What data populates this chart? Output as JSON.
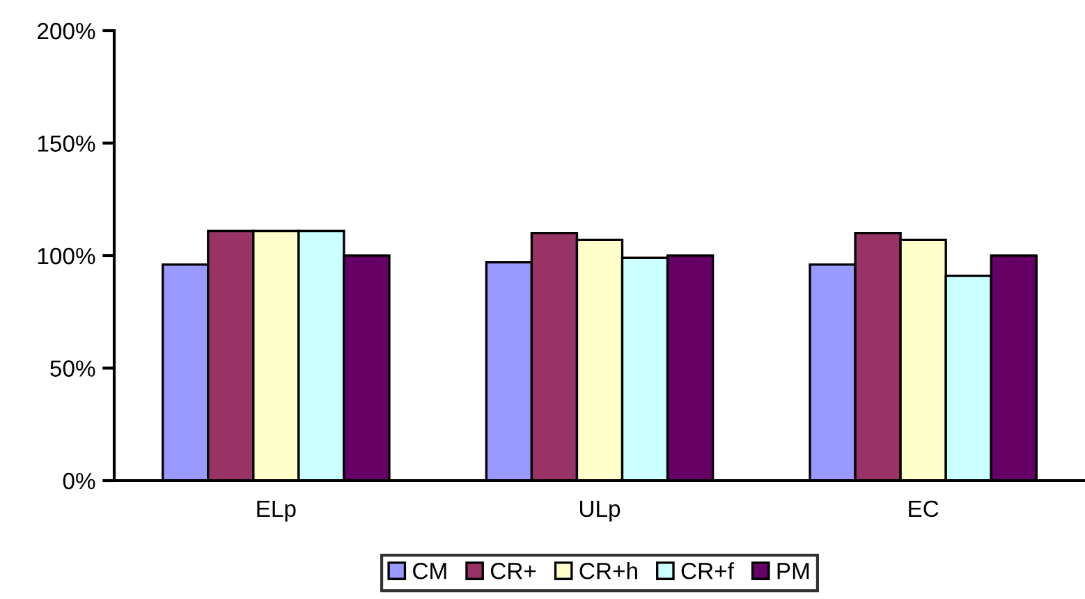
{
  "chart_data": {
    "type": "bar",
    "categories": [
      "ELp",
      "ULp",
      "EC"
    ],
    "series": [
      {
        "name": "CM",
        "color": "#9999ff",
        "values": [
          96,
          97,
          96
        ]
      },
      {
        "name": "CR+",
        "color": "#993366",
        "values": [
          111,
          110,
          110
        ]
      },
      {
        "name": "CR+h",
        "color": "#ffffcc",
        "values": [
          111,
          107,
          107
        ]
      },
      {
        "name": "CR+f",
        "color": "#ccffff",
        "values": [
          111,
          99,
          91
        ]
      },
      {
        "name": "PM",
        "color": "#660066",
        "values": [
          100,
          100,
          100
        ]
      }
    ],
    "ylim": [
      0,
      200
    ],
    "yticks": [
      {
        "value": 0,
        "label": "0%"
      },
      {
        "value": 50,
        "label": "50%"
      },
      {
        "value": 100,
        "label": "100%"
      },
      {
        "value": 150,
        "label": "150%"
      },
      {
        "value": 200,
        "label": "200%"
      }
    ],
    "grid": false,
    "legend": "bottom"
  }
}
